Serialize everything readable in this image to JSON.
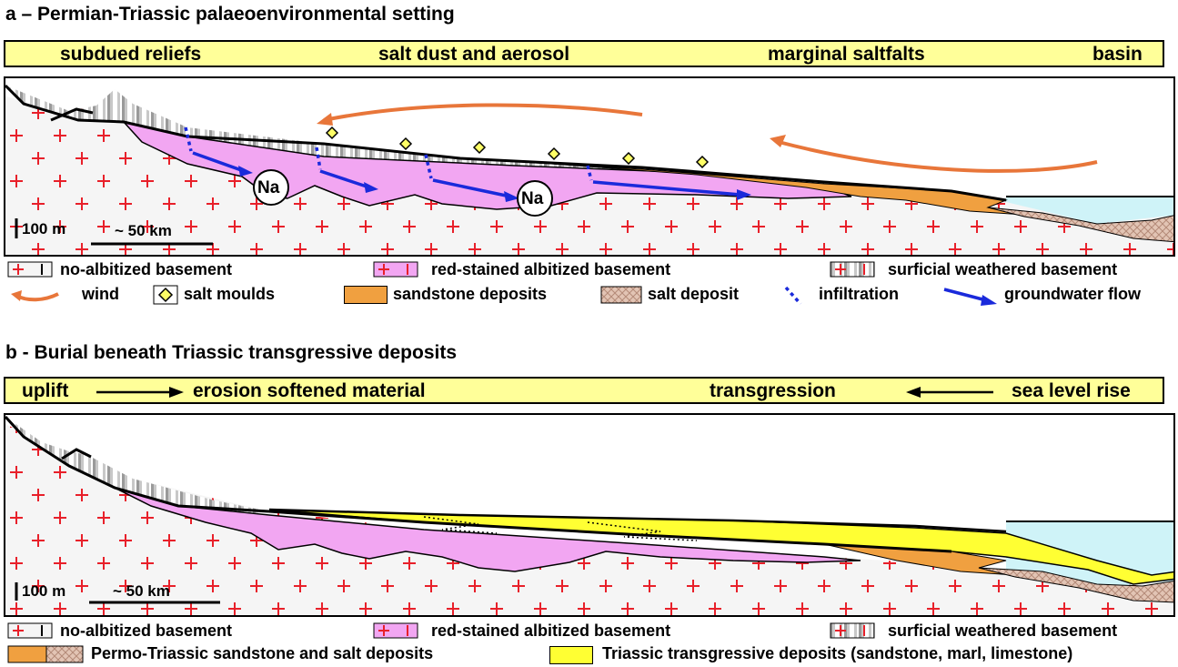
{
  "panel_a": {
    "title": "a – Permian-Triassic palaeoenvironmental setting",
    "banner": {
      "left": "subdued reliefs",
      "center": "salt dust and aerosol",
      "right_center": "marginal saltfalts",
      "right": "basin"
    },
    "ion_labels": [
      "Na",
      "Na"
    ],
    "scale": {
      "vertical": "100 m",
      "horizontal": "~ 50 km"
    },
    "legend": {
      "no_albitized": "no-albitized basement",
      "red_stained": "red-stained albitized basement",
      "surficial_weathered": "surficial weathered basement",
      "wind": "wind",
      "salt_moulds": "salt moulds",
      "sandstone": "sandstone deposits",
      "salt_deposit": "salt deposit",
      "infiltration": "infiltration",
      "groundwater": "groundwater flow"
    }
  },
  "panel_b": {
    "title": "b - Burial beneath Triassic transgressive deposits",
    "banner": {
      "uplift": "uplift",
      "erosion": "erosion softened material",
      "transgression": "transgression",
      "sea_level": "sea level rise"
    },
    "scale": {
      "vertical": "100 m",
      "horizontal": "~ 50 km"
    },
    "legend": {
      "no_albitized": "no-albitized basement",
      "red_stained": "red-stained albitized basement",
      "surficial_weathered": "surficial weathered basement",
      "permo_triassic": "Permo-Triassic sandstone and salt deposits",
      "triassic_transgressive": "Triassic transgressive deposits (sandstone, marl, limestone)"
    }
  },
  "colors": {
    "banner": "#ffff99",
    "albitized": "#f2a6f2",
    "sandstone": "#f0a040",
    "salt": "#d9b8a8",
    "sea": "#cff3f8",
    "transgressive": "#ffff33",
    "wind": "#e8763a",
    "groundwater": "#1a2adb",
    "cross": "#e8202a"
  }
}
